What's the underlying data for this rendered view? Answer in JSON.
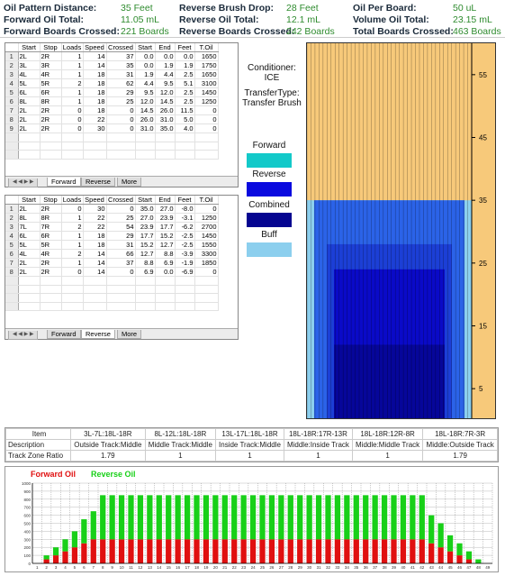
{
  "header": {
    "col1": [
      {
        "label": "Oil Pattern Distance:",
        "value": "35 Feet"
      },
      {
        "label": "Forward Oil Total:",
        "value": "11.05 mL"
      },
      {
        "label": "Forward Boards Crossed:",
        "value": "221 Boards"
      }
    ],
    "col2": [
      {
        "label": "Reverse Brush Drop:",
        "value": "28 Feet"
      },
      {
        "label": "Reverse Oil Total:",
        "value": "12.1 mL"
      },
      {
        "label": "Reverse Boards Crossed:",
        "value": "242 Boards"
      }
    ],
    "col3": [
      {
        "label": "Oil Per Board:",
        "value": "50 uL"
      },
      {
        "label": "Volume Oil Total:",
        "value": "23.15 mL"
      },
      {
        "label": "Total Boards Crossed:",
        "value": "463 Boards"
      }
    ]
  },
  "forward_table": {
    "columns": [
      "",
      "Start",
      "Stop",
      "Loads",
      "Speed",
      "Crossed",
      "Start",
      "End",
      "Feet",
      "T.Oil"
    ],
    "rows": [
      [
        "1",
        "2L",
        "2R",
        "1",
        "14",
        "37",
        "0.0",
        "0.0",
        "0.0",
        "1650"
      ],
      [
        "2",
        "3L",
        "3R",
        "1",
        "14",
        "35",
        "0.0",
        "1.9",
        "1.9",
        "1750"
      ],
      [
        "3",
        "4L",
        "4R",
        "1",
        "18",
        "31",
        "1.9",
        "4.4",
        "2.5",
        "1650"
      ],
      [
        "4",
        "5L",
        "5R",
        "2",
        "18",
        "62",
        "4.4",
        "9.5",
        "5.1",
        "3100"
      ],
      [
        "5",
        "6L",
        "6R",
        "1",
        "18",
        "29",
        "9.5",
        "12.0",
        "2.5",
        "1450"
      ],
      [
        "6",
        "8L",
        "8R",
        "1",
        "18",
        "25",
        "12.0",
        "14.5",
        "2.5",
        "1250"
      ],
      [
        "7",
        "2L",
        "2R",
        "0",
        "18",
        "0",
        "14.5",
        "26.0",
        "11.5",
        "0"
      ],
      [
        "8",
        "2L",
        "2R",
        "0",
        "22",
        "0",
        "26.0",
        "31.0",
        "5.0",
        "0"
      ],
      [
        "9",
        "2L",
        "2R",
        "0",
        "30",
        "0",
        "31.0",
        "35.0",
        "4.0",
        "0"
      ]
    ],
    "tabs": [
      "Forward",
      "Reverse",
      "More"
    ],
    "active_tab": "Forward"
  },
  "reverse_table": {
    "columns": [
      "",
      "Start",
      "Stop",
      "Loads",
      "Speed",
      "Crossed",
      "Start",
      "End",
      "Feet",
      "T.Oil"
    ],
    "rows": [
      [
        "1",
        "2L",
        "2R",
        "0",
        "30",
        "0",
        "35.0",
        "27.0",
        "-8.0",
        "0"
      ],
      [
        "2",
        "8L",
        "8R",
        "1",
        "22",
        "25",
        "27.0",
        "23.9",
        "-3.1",
        "1250"
      ],
      [
        "3",
        "7L",
        "7R",
        "2",
        "22",
        "54",
        "23.9",
        "17.7",
        "-6.2",
        "2700"
      ],
      [
        "4",
        "6L",
        "6R",
        "1",
        "18",
        "29",
        "17.7",
        "15.2",
        "-2.5",
        "1450"
      ],
      [
        "5",
        "5L",
        "5R",
        "1",
        "18",
        "31",
        "15.2",
        "12.7",
        "-2.5",
        "1550"
      ],
      [
        "6",
        "4L",
        "4R",
        "2",
        "14",
        "66",
        "12.7",
        "8.8",
        "-3.9",
        "3300"
      ],
      [
        "7",
        "2L",
        "2R",
        "1",
        "14",
        "37",
        "8.8",
        "6.9",
        "-1.9",
        "1850"
      ],
      [
        "8",
        "2L",
        "2R",
        "0",
        "14",
        "0",
        "6.9",
        "0.0",
        "-6.9",
        "0"
      ]
    ],
    "tabs": [
      "Forward",
      "Reverse",
      "More"
    ],
    "active_tab": "Reverse"
  },
  "conditioner": "Conditioner: ICE",
  "transfer_type": [
    "TransferType:",
    "Transfer Brush"
  ],
  "legend": [
    {
      "label": "Forward",
      "color": "#13c9c9"
    },
    {
      "label": "Reverse",
      "color": "#0a0adf"
    },
    {
      "label": "Combined",
      "color": "#050590"
    },
    {
      "label": "Buff",
      "color": "#8ccfee"
    }
  ],
  "lane_colors": {
    "dry": "#f7c97a",
    "buff": "#8ccfee",
    "light": "#2b63e8",
    "mid": "#1c3fd6",
    "dark": "#0a0ac8",
    "darker": "#06069a"
  },
  "lane_feet_labels": [
    "55",
    "45",
    "35",
    "25",
    "15",
    "5"
  ],
  "summary": {
    "row_labels": [
      "Item",
      "Description",
      "Track Zone Ratio"
    ],
    "columns": [
      {
        "item": "3L-7L:18L-18R",
        "desc": "Outside Track:Middle",
        "ratio": "1.79"
      },
      {
        "item": "8L-12L:18L-18R",
        "desc": "Middle Track:Middle",
        "ratio": "1"
      },
      {
        "item": "13L-17L:18L-18R",
        "desc": "Inside Track:Middle",
        "ratio": "1"
      },
      {
        "item": "18L-18R:17R-13R",
        "desc": "Middle:Inside Track",
        "ratio": "1"
      },
      {
        "item": "18L-18R:12R-8R",
        "desc": "Middle:Middle Track",
        "ratio": "1"
      },
      {
        "item": "18L-18R:7R-3R",
        "desc": "Middle:Outside Track",
        "ratio": "1.79"
      }
    ]
  },
  "chart_data": {
    "type": "bar",
    "legend": [
      "Forward Oil",
      "Reverse Oil"
    ],
    "colors": {
      "Forward Oil": "#e01010",
      "Reverse Oil": "#18d018"
    },
    "categories": [
      "1",
      "2",
      "3",
      "4",
      "5",
      "6",
      "7",
      "8",
      "9",
      "10",
      "11",
      "12",
      "13",
      "14",
      "15",
      "16",
      "17",
      "18",
      "19",
      "20",
      "21",
      "22",
      "23",
      "24",
      "25",
      "26",
      "27",
      "28",
      "29",
      "30",
      "31",
      "32",
      "33",
      "34",
      "35",
      "36",
      "37",
      "38",
      "39",
      "40",
      "41",
      "42",
      "43",
      "44",
      "45",
      "46",
      "47",
      "48",
      "49"
    ],
    "series": [
      {
        "name": "Forward Oil",
        "values": [
          0,
          50,
          100,
          150,
          200,
          250,
          300,
          300,
          300,
          300,
          300,
          300,
          300,
          300,
          300,
          300,
          300,
          300,
          300,
          300,
          300,
          300,
          300,
          300,
          300,
          300,
          300,
          300,
          300,
          300,
          300,
          300,
          300,
          300,
          300,
          300,
          300,
          300,
          300,
          300,
          300,
          300,
          250,
          200,
          150,
          100,
          50,
          0,
          0
        ]
      },
      {
        "name": "Reverse Oil",
        "values": [
          0,
          50,
          100,
          150,
          200,
          300,
          350,
          550,
          550,
          550,
          550,
          550,
          550,
          550,
          550,
          550,
          550,
          550,
          550,
          550,
          550,
          550,
          550,
          550,
          550,
          550,
          550,
          550,
          550,
          550,
          550,
          550,
          550,
          550,
          550,
          550,
          550,
          550,
          550,
          550,
          550,
          550,
          350,
          300,
          200,
          150,
          100,
          50,
          0
        ]
      }
    ],
    "ylim": [
      0,
      1000
    ],
    "yticks": [
      {
        "v": 1000,
        "label": "1000"
      },
      {
        "v": 900,
        "label": "900"
      },
      {
        "v": 800,
        "label": "800"
      },
      {
        "v": 700,
        "label": "700"
      },
      {
        "v": 600,
        "label": "600"
      },
      {
        "v": 500,
        "label": "500"
      },
      {
        "v": 400,
        "label": "400"
      },
      {
        "v": 300,
        "label": "300"
      },
      {
        "v": 200,
        "label": "200"
      },
      {
        "v": 100,
        "label": "100"
      },
      {
        "v": 0,
        "label": "0"
      }
    ],
    "grid": true
  }
}
